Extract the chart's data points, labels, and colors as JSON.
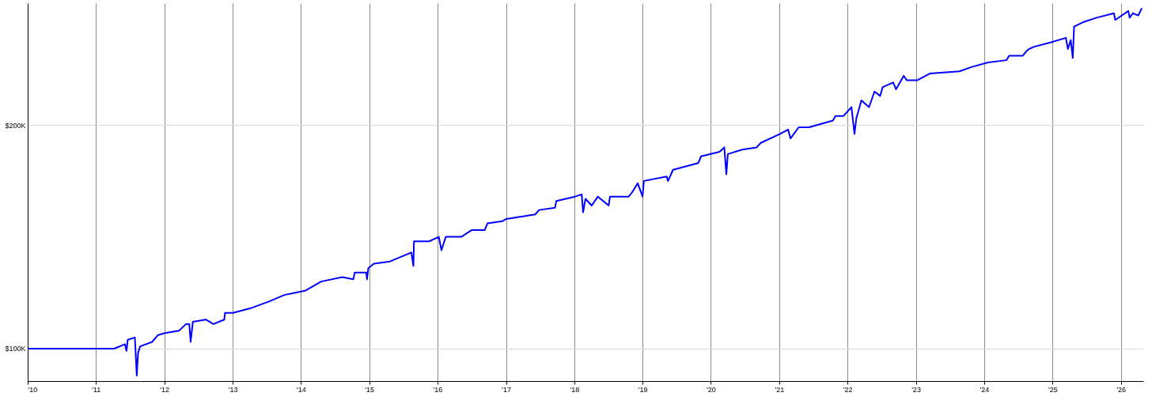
{
  "chart_data": {
    "type": "line",
    "x": [
      "2010-01-04",
      "2011-04-08",
      "2011-06-05",
      "2011-06-13",
      "2011-06-20",
      "2011-07-28",
      "2011-08-07",
      "2011-08-14",
      "2011-08-25",
      "2011-10-28",
      "2011-11-27",
      "2012-01-05",
      "2012-03-20",
      "2012-04-26",
      "2012-05-14",
      "2012-05-21",
      "2012-06-02",
      "2012-08-10",
      "2012-09-20",
      "2012-11-17",
      "2012-11-21",
      "2013-01-02",
      "2013-04-04",
      "2013-07-11",
      "2013-10-04",
      "2013-12-02",
      "2014-01-26",
      "2014-04-19",
      "2014-08-10",
      "2014-10-08",
      "2014-10-15",
      "2014-12-16",
      "2014-12-20",
      "2014-12-27",
      "2015-01-26",
      "2015-04-22",
      "2015-08-14",
      "2015-08-25",
      "2015-08-28",
      "2015-11-17",
      "2016-01-08",
      "2016-01-22",
      "2016-02-14",
      "2016-05-07",
      "2016-07-01",
      "2016-09-09",
      "2016-09-24",
      "2016-12-13",
      "2017-01-02",
      "2017-06-06",
      "2017-06-27",
      "2017-09-20",
      "2017-09-27",
      "2018-01-05",
      "2018-02-10",
      "2018-02-17",
      "2018-03-02",
      "2018-04-04",
      "2018-05-07",
      "2018-07-04",
      "2018-07-11",
      "2018-10-19",
      "2018-11-07",
      "2018-12-06",
      "2019-01-01",
      "2019-01-08",
      "2019-05-10",
      "2019-05-17",
      "2019-06-13",
      "2019-10-26",
      "2019-11-10",
      "2020-02-17",
      "2020-03-13",
      "2020-03-24",
      "2020-04-01",
      "2020-06-17",
      "2020-09-02",
      "2020-09-24",
      "2021-01-05",
      "2021-02-17",
      "2021-03-02",
      "2021-04-15",
      "2021-06-09",
      "2021-10-15",
      "2021-10-28",
      "2021-12-09",
      "2022-01-22",
      "2022-02-07",
      "2022-02-17",
      "2022-03-16",
      "2022-04-26",
      "2022-05-25",
      "2022-06-24",
      "2022-07-08",
      "2022-09-02",
      "2022-09-17",
      "2022-10-28",
      "2022-11-14",
      "2023-01-08",
      "2023-03-16",
      "2023-08-21",
      "2023-10-28",
      "2024-01-22",
      "2024-04-29",
      "2024-05-14",
      "2024-07-26",
      "2024-08-14",
      "2024-08-28",
      "2024-09-24",
      "2024-12-24",
      "2025-03-13",
      "2025-03-24",
      "2025-04-08",
      "2025-04-19",
      "2025-04-26",
      "2025-06-13",
      "2025-08-25",
      "2025-11-25",
      "2025-12-02",
      "2026-02-10",
      "2026-02-17",
      "2026-03-06",
      "2026-04-04",
      "2026-04-22"
    ],
    "series": [
      {
        "color": "#0000ff",
        "values": [
          100,
          100,
          102,
          99,
          104,
          105,
          88,
          98,
          101,
          103,
          106,
          107,
          108,
          111,
          111,
          103,
          112,
          113,
          111,
          113,
          116,
          116,
          118,
          121,
          124,
          125,
          126,
          130,
          132,
          131,
          134,
          134,
          131,
          136,
          138,
          139,
          143,
          137,
          148,
          148,
          150,
          144,
          150,
          150,
          153,
          153,
          156,
          157,
          158,
          160,
          162,
          163,
          166,
          168,
          169,
          161,
          167,
          164,
          168,
          164,
          168,
          168,
          170,
          174,
          168,
          175,
          177,
          175,
          180,
          183,
          186,
          188,
          190,
          178,
          187,
          189,
          190,
          192,
          196,
          198,
          194,
          199,
          199,
          202,
          204,
          204,
          208,
          196,
          203,
          211,
          208,
          215,
          213,
          217,
          219,
          216,
          222,
          220,
          220,
          223,
          224,
          226,
          228,
          229,
          231,
          231,
          233,
          234,
          235,
          237,
          239,
          234,
          238,
          230,
          244,
          246,
          248,
          250,
          247,
          251,
          248,
          250,
          249,
          252
        ]
      }
    ],
    "xlim": [
      "2010-01-01",
      "2026-05-01"
    ],
    "ylim": [
      85.5,
      254.5
    ],
    "xticks": [
      {
        "value": "2010",
        "label": "'10"
      },
      {
        "value": "2011",
        "label": "'11"
      },
      {
        "value": "2012",
        "label": "'12"
      },
      {
        "value": "2013",
        "label": "'13"
      },
      {
        "value": "2014",
        "label": "'14"
      },
      {
        "value": "2015",
        "label": "'15"
      },
      {
        "value": "2016",
        "label": "'16"
      },
      {
        "value": "2017",
        "label": "'17"
      },
      {
        "value": "2018",
        "label": "'18"
      },
      {
        "value": "2019",
        "label": "'19"
      },
      {
        "value": "2020",
        "label": "'20"
      },
      {
        "value": "2021",
        "label": "'21"
      },
      {
        "value": "2022",
        "label": "'22"
      },
      {
        "value": "2023",
        "label": "'23"
      },
      {
        "value": "2024",
        "label": "'24"
      },
      {
        "value": "2025",
        "label": "'25"
      },
      {
        "value": "2026",
        "label": "'26"
      }
    ],
    "yticks": [
      {
        "value": 100,
        "label": "$100K"
      },
      {
        "value": 200,
        "label": "$200K"
      }
    ],
    "grid": true
  }
}
